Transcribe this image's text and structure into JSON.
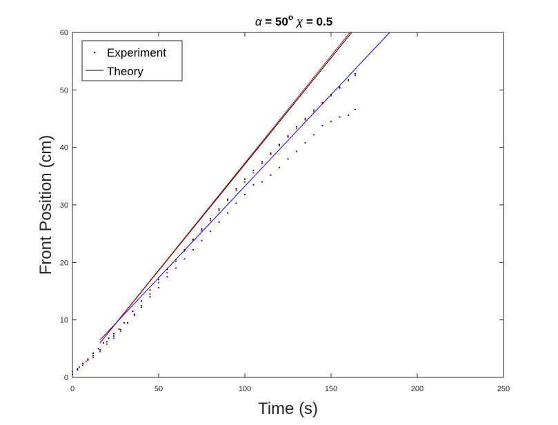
{
  "chart_data": {
    "type": "line",
    "title_parts": [
      "α",
      " = 50",
      "o",
      " χ",
      " = 0.5"
    ],
    "xlabel": "Time (s)",
    "ylabel": "Front Position (cm)",
    "xlim": [
      0,
      250
    ],
    "ylim": [
      0,
      60
    ],
    "xticks": [
      0,
      50,
      100,
      150,
      200,
      250
    ],
    "yticks": [
      0,
      10,
      20,
      30,
      40,
      50,
      60
    ],
    "grid": false,
    "legend": {
      "position": "top-left",
      "entries": [
        {
          "label": "Experiment",
          "marker": "dot"
        },
        {
          "label": "Theory",
          "marker": "line"
        }
      ]
    },
    "colors": {
      "black": "#000000",
      "red": "#cc0000",
      "blue": "#0000ee"
    },
    "theory_lines": [
      {
        "color": "#000000",
        "x": [
          16,
          162
        ],
        "y": [
          6.0,
          60.0
        ]
      },
      {
        "color": "#cc0000",
        "x": [
          16,
          161
        ],
        "y": [
          6.0,
          60.0
        ]
      },
      {
        "color": "#0000ee",
        "x": [
          16,
          184
        ],
        "y": [
          6.5,
          60.0
        ]
      }
    ],
    "experiment": [
      {
        "color": "#000000",
        "x": [
          0,
          3,
          6,
          9,
          12,
          15,
          18,
          21,
          24,
          27,
          30,
          35,
          40,
          45,
          50,
          55,
          60,
          65,
          70,
          75,
          80,
          85,
          90,
          95,
          100,
          105,
          110,
          115,
          120,
          125,
          130,
          135,
          140,
          145,
          150,
          155,
          160,
          164
        ],
        "y": [
          0.5,
          1.5,
          2.4,
          3.2,
          4.2,
          5.0,
          6.0,
          6.8,
          7.6,
          8.4,
          9.5,
          11.5,
          13.3,
          15.2,
          17.0,
          18.8,
          20.5,
          22.2,
          24.0,
          25.8,
          27.6,
          29.3,
          31.0,
          32.8,
          34.5,
          36.0,
          37.5,
          39.0,
          40.5,
          42.0,
          43.6,
          45.0,
          46.5,
          47.8,
          49.2,
          50.5,
          51.8,
          52.8
        ]
      },
      {
        "color": "#cc0000",
        "x": [
          0,
          4,
          8,
          12,
          16,
          20,
          24,
          28,
          32,
          36,
          40,
          45,
          50,
          55,
          60,
          65,
          70,
          75,
          80,
          85,
          90,
          95,
          100,
          105,
          110,
          115,
          120,
          125,
          130,
          135,
          140,
          145,
          150,
          155,
          160,
          164
        ],
        "y": [
          1.0,
          1.8,
          2.8,
          3.5,
          4.5,
          5.8,
          6.8,
          8.0,
          9.5,
          11.0,
          12.5,
          14.5,
          16.5,
          18.2,
          20.2,
          22.0,
          23.8,
          25.5,
          27.3,
          29.0,
          30.8,
          32.5,
          34.0,
          35.6,
          37.2,
          38.8,
          40.3,
          41.8,
          43.3,
          44.8,
          46.2,
          47.6,
          49.0,
          50.3,
          51.6,
          52.5
        ]
      },
      {
        "color": "#0000ee",
        "x": [
          0,
          3,
          6,
          9,
          12,
          16,
          20,
          24,
          28,
          32,
          36,
          40,
          45,
          50,
          55,
          60,
          65,
          70,
          75,
          80,
          85,
          90,
          95,
          100,
          105,
          110,
          115,
          120,
          125,
          130,
          135,
          140,
          145,
          150,
          155,
          160,
          164
        ],
        "y": [
          0.5,
          1.3,
          2.1,
          3.0,
          3.8,
          4.8,
          6.2,
          7.2,
          8.3,
          9.5,
          10.8,
          12.2,
          14.0,
          15.6,
          17.5,
          19.0,
          20.6,
          22.2,
          23.8,
          25.4,
          27.0,
          28.6,
          30.3,
          31.8,
          33.5,
          34.0,
          35.2,
          36.5,
          38.0,
          39.3,
          40.8,
          42.2,
          43.8,
          44.5,
          45.3,
          45.6,
          46.6
        ]
      }
    ]
  }
}
